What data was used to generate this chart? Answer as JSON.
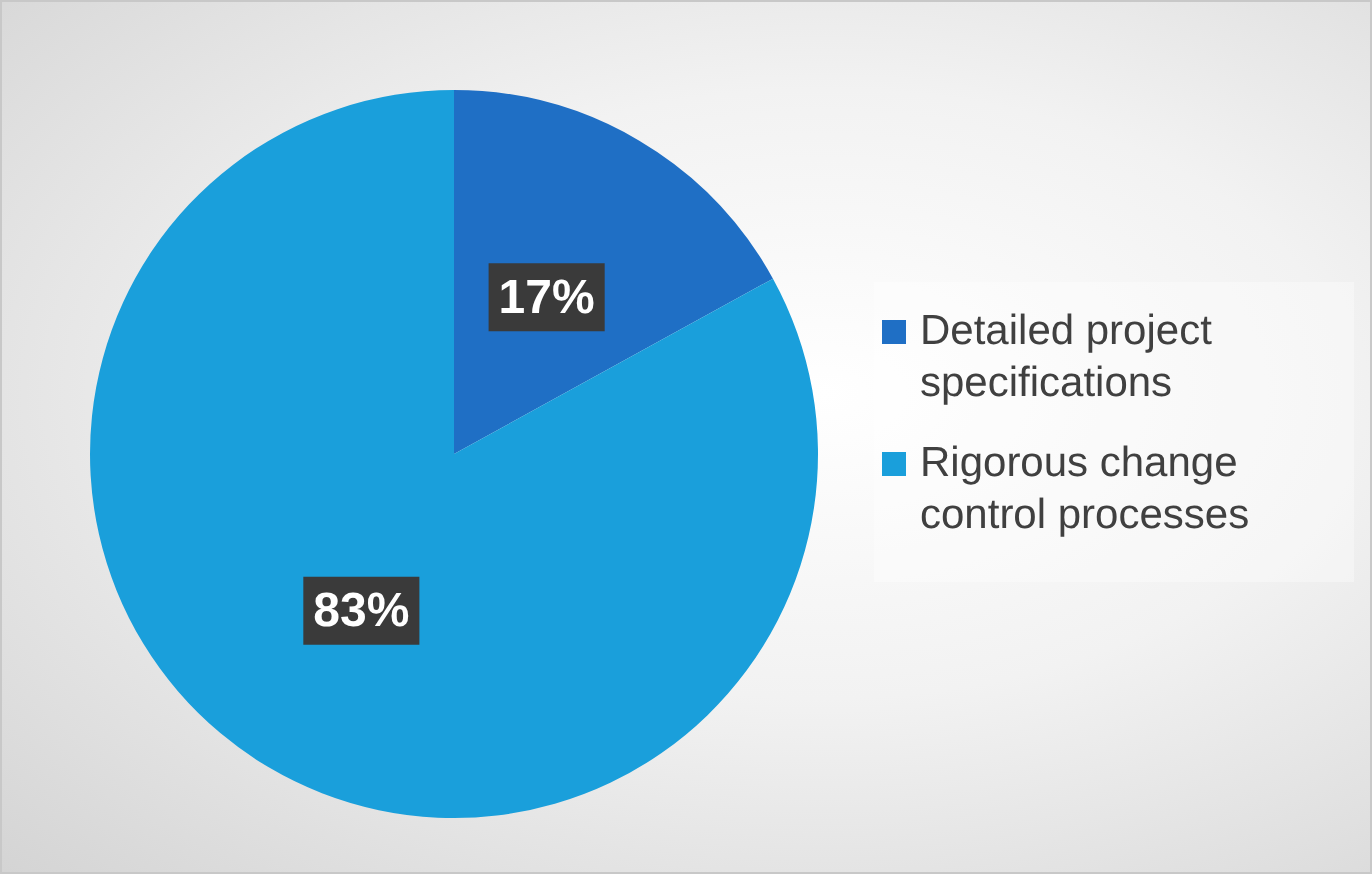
{
  "chart_data": {
    "type": "pie",
    "categories": [
      "Detailed project specifications",
      "Rigorous change control processes"
    ],
    "values": [
      17,
      83
    ],
    "colors": [
      "#1f6fc5",
      "#1a9fdb"
    ],
    "value_labels": [
      "17%",
      "83%"
    ],
    "legend": "right"
  }
}
